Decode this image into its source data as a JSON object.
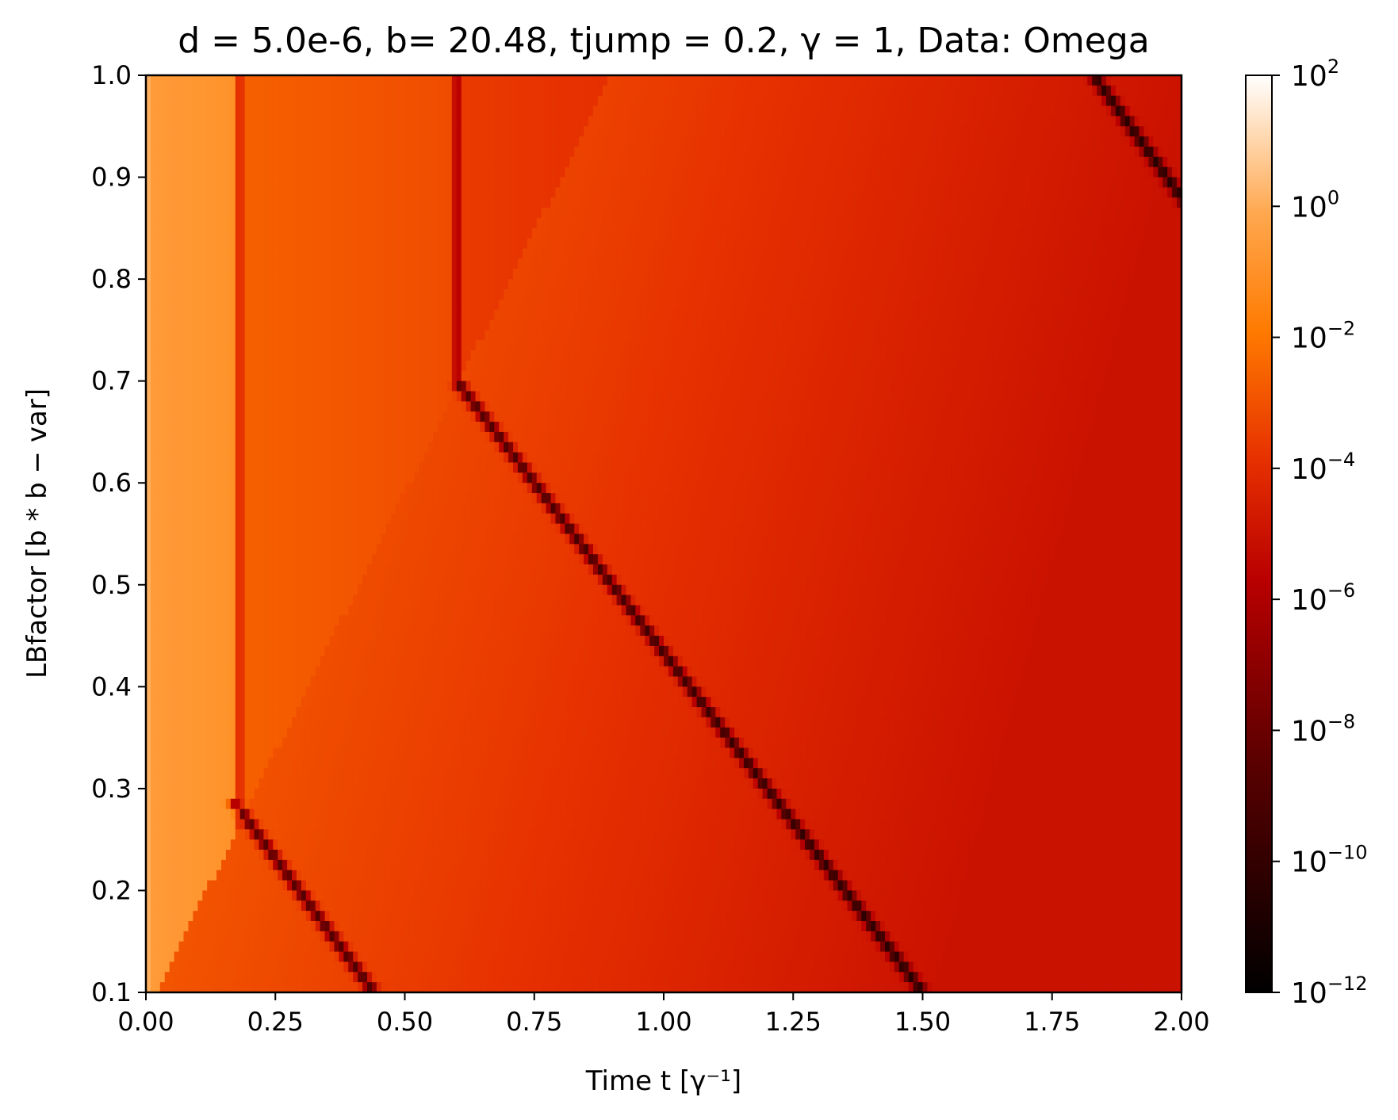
{
  "chart_data": {
    "type": "heatmap",
    "title": "d = 5.0e-6, b= 20.48, tjump = 0.2,  γ = 1, Data: Omega",
    "xlabel": "Time t  [γ⁻¹]",
    "ylabel": "LBfactor [b * b − var]",
    "xlim": [
      0.0,
      2.0
    ],
    "ylim": [
      0.1,
      1.0
    ],
    "x_ticks": [
      0.0,
      0.25,
      0.5,
      0.75,
      1.0,
      1.25,
      1.5,
      1.75,
      2.0
    ],
    "x_tick_labels": [
      "0.00",
      "0.25",
      "0.50",
      "0.75",
      "1.00",
      "1.25",
      "1.50",
      "1.75",
      "2.00"
    ],
    "y_ticks": [
      0.1,
      0.2,
      0.3,
      0.4,
      0.5,
      0.6,
      0.7,
      0.8,
      0.9,
      1.0
    ],
    "y_tick_labels": [
      "0.1",
      "0.2",
      "0.3",
      "0.4",
      "0.5",
      "0.6",
      "0.7",
      "0.8",
      "0.9",
      "1.0"
    ],
    "colorbar": {
      "scale": "log",
      "colormap": "gist_heat",
      "range": [
        1e-12,
        100
      ],
      "tick_exponents": [
        2,
        0,
        -2,
        -4,
        -6,
        -8,
        -10,
        -12
      ],
      "tick_labels": [
        "10",
        "10",
        "10",
        "10",
        "10",
        "10",
        "10",
        "10"
      ],
      "tick_exponent_labels": [
        "2",
        "0",
        "−2",
        "−4",
        "−6",
        "−8",
        "−10",
        "−12"
      ]
    },
    "features": {
      "dark_vertical_lines_t": [
        0.18,
        0.6
      ],
      "dark_diagonal_lines": [
        {
          "from": [
            0.18,
            0.28
          ],
          "to": [
            0.44,
            0.1
          ]
        },
        {
          "from": [
            0.6,
            0.7
          ],
          "to": [
            1.5,
            0.1
          ]
        },
        {
          "from": [
            1.83,
            1.0
          ],
          "to": [
            2.0,
            0.88
          ]
        }
      ],
      "front_line": {
        "from": [
          0.02,
          0.1
        ],
        "to": [
          0.9,
          1.0
        ]
      },
      "approx_log10_levels": {
        "early_band": -0.6,
        "between_lines": -2.6,
        "after_line_2": -3.6,
        "lower_left_region": -2.9,
        "late_region": -5.0
      }
    }
  }
}
